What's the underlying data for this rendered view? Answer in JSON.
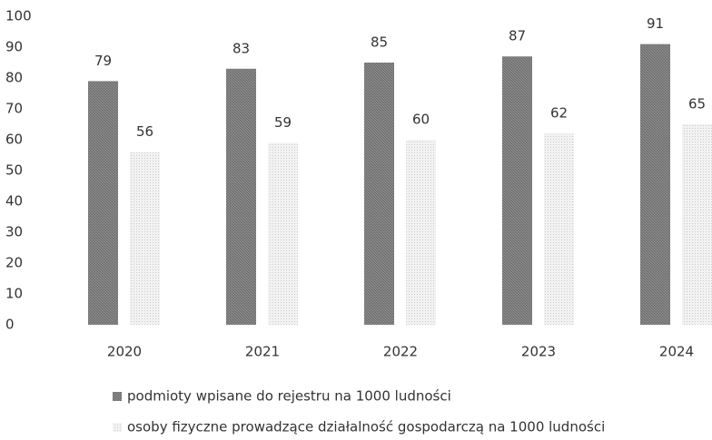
{
  "chart_data": {
    "type": "bar",
    "categories": [
      "2020",
      "2021",
      "2022",
      "2023",
      "2024"
    ],
    "series": [
      {
        "name": "podmioty wpisane do rejestru na 1000 ludności",
        "color": "#8c8c8c",
        "values": [
          79,
          83,
          85,
          87,
          91
        ]
      },
      {
        "name": "osoby fizyczne prowadzące działalność gospodarczą na 1000 ludności",
        "color": "#ebebeb",
        "values": [
          56,
          59,
          60,
          62,
          65
        ]
      }
    ],
    "ylim": [
      0,
      100
    ],
    "yticks": [
      0,
      10,
      20,
      30,
      40,
      50,
      60,
      70,
      80,
      90,
      100
    ],
    "grid": false,
    "legend": "bottom"
  }
}
